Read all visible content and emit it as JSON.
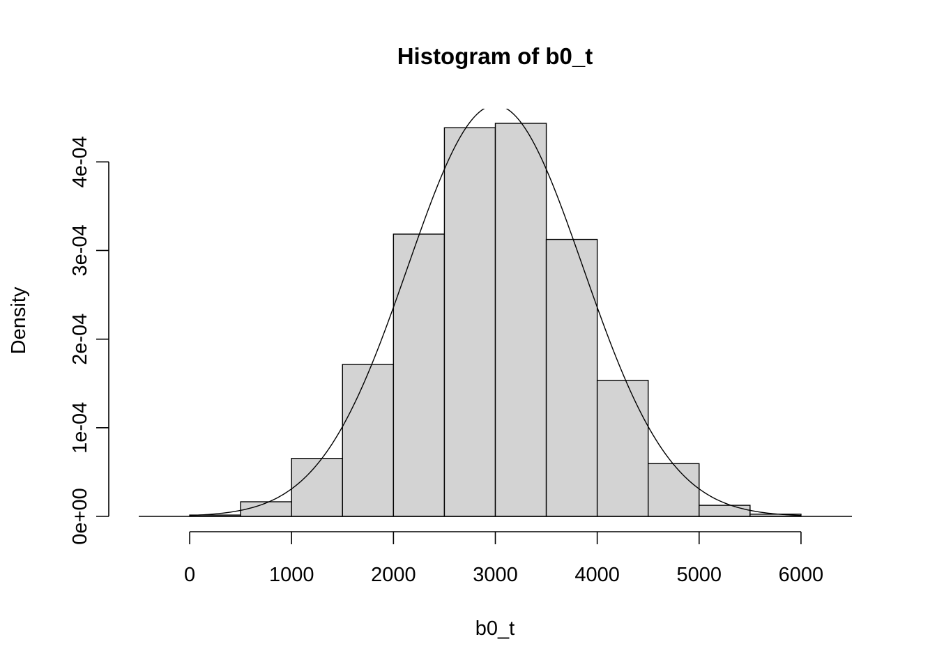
{
  "chart_data": {
    "type": "bar",
    "title": "Histogram of b0_t",
    "xlabel": "b0_t",
    "ylabel": "Density",
    "xlim": [
      -500,
      6500
    ],
    "ylim": [
      0,
      0.00046
    ],
    "x_ticks": [
      0,
      1000,
      2000,
      3000,
      4000,
      5000,
      6000
    ],
    "x_tick_labels": [
      "0",
      "1000",
      "2000",
      "3000",
      "4000",
      "5000",
      "6000"
    ],
    "y_ticks": [
      0,
      0.0001,
      0.0002,
      0.0003,
      0.0004
    ],
    "y_tick_labels": [
      "0e+00",
      "1e-04",
      "2e-04",
      "3e-04",
      "4e-04"
    ],
    "bins": [
      {
        "x0": 0,
        "x1": 500,
        "density": 1.5e-06
      },
      {
        "x0": 500,
        "x1": 1000,
        "density": 1.65e-05
      },
      {
        "x0": 1000,
        "x1": 1500,
        "density": 6.55e-05
      },
      {
        "x0": 1500,
        "x1": 2000,
        "density": 0.0001715
      },
      {
        "x0": 2000,
        "x1": 2500,
        "density": 0.0003185
      },
      {
        "x0": 2500,
        "x1": 3000,
        "density": 0.0004385
      },
      {
        "x0": 3000,
        "x1": 3500,
        "density": 0.0004435
      },
      {
        "x0": 3500,
        "x1": 4000,
        "density": 0.0003125
      },
      {
        "x0": 4000,
        "x1": 4500,
        "density": 0.0001535
      },
      {
        "x0": 4500,
        "x1": 5000,
        "density": 5.95e-05
      },
      {
        "x0": 5000,
        "x1": 5500,
        "density": 1.25e-05
      },
      {
        "x0": 5500,
        "x1": 6000,
        "density": 2.5e-06
      }
    ],
    "density_curve": {
      "type": "normal",
      "mean": 3000,
      "sd": 860
    },
    "bar_fill": "#d3d3d3",
    "line_color": "#000000"
  }
}
